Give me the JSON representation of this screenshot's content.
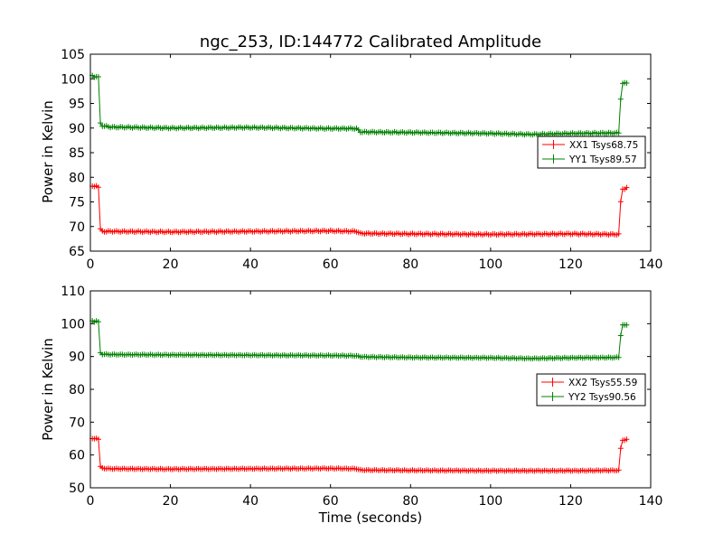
{
  "chart_data": [
    {
      "type": "line",
      "title": "ngc_253, ID:144772 Calibrated Amplitude",
      "xlabel": "",
      "ylabel": "Power in Kelvin",
      "xlim": [
        0,
        140
      ],
      "ylim": [
        65,
        105
      ],
      "xticks": [
        0,
        20,
        40,
        60,
        80,
        100,
        120,
        140
      ],
      "yticks": [
        65,
        70,
        75,
        80,
        85,
        90,
        95,
        100,
        105
      ],
      "legend_position": "right",
      "series": [
        {
          "name": "XX1 Tsys68.75",
          "color": "#ff0000",
          "levels": [
            [
              0.5,
              78.2
            ],
            [
              1.0,
              78.0
            ],
            [
              1.5,
              78.3
            ],
            [
              2.0,
              78.1
            ],
            [
              2.3,
              70.5
            ],
            [
              2.6,
              69.0
            ],
            [
              5,
              69.0
            ],
            [
              20,
              68.9
            ],
            [
              40,
              69.0
            ],
            [
              60,
              69.1
            ],
            [
              66.5,
              69.0
            ],
            [
              67.5,
              68.6
            ],
            [
              80,
              68.5
            ],
            [
              100,
              68.4
            ],
            [
              120,
              68.5
            ],
            [
              132,
              68.4
            ],
            [
              132.5,
              75.0
            ],
            [
              133,
              77.7
            ],
            [
              133.5,
              77.6
            ],
            [
              134,
              77.8
            ]
          ]
        },
        {
          "name": "YY1 Tsys89.57",
          "color": "#008000",
          "levels": [
            [
              0.5,
              100.6
            ],
            [
              1.0,
              100.4
            ],
            [
              1.5,
              100.5
            ],
            [
              2.0,
              100.3
            ],
            [
              2.3,
              92.0
            ],
            [
              2.6,
              90.5
            ],
            [
              5,
              90.2
            ],
            [
              20,
              90.0
            ],
            [
              40,
              90.1
            ],
            [
              60,
              89.9
            ],
            [
              66.5,
              89.9
            ],
            [
              67.5,
              89.2
            ],
            [
              80,
              89.1
            ],
            [
              100,
              88.9
            ],
            [
              110,
              88.7
            ],
            [
              120,
              88.9
            ],
            [
              132,
              89.0
            ],
            [
              132.5,
              96.0
            ],
            [
              133,
              99.0
            ],
            [
              133.5,
              99.1
            ],
            [
              134,
              99.2
            ]
          ]
        }
      ]
    },
    {
      "type": "line",
      "title": "",
      "xlabel": "Time (seconds)",
      "ylabel": "Power in Kelvin",
      "xlim": [
        0,
        140
      ],
      "ylim": [
        50,
        110
      ],
      "xticks": [
        0,
        20,
        40,
        60,
        80,
        100,
        120,
        140
      ],
      "yticks": [
        50,
        60,
        70,
        80,
        90,
        100,
        110
      ],
      "legend_position": "right",
      "series": [
        {
          "name": "XX2 Tsys55.59",
          "color": "#ff0000",
          "levels": [
            [
              0.5,
              65.0
            ],
            [
              1.0,
              64.8
            ],
            [
              1.5,
              65.1
            ],
            [
              2.0,
              64.9
            ],
            [
              2.3,
              57.5
            ],
            [
              2.6,
              56.0
            ],
            [
              5,
              55.8
            ],
            [
              20,
              55.7
            ],
            [
              40,
              55.8
            ],
            [
              60,
              55.9
            ],
            [
              66.5,
              55.8
            ],
            [
              67.5,
              55.4
            ],
            [
              80,
              55.3
            ],
            [
              100,
              55.2
            ],
            [
              120,
              55.2
            ],
            [
              132,
              55.3
            ],
            [
              132.5,
              62.0
            ],
            [
              133,
              64.6
            ],
            [
              133.5,
              64.5
            ],
            [
              134,
              64.7
            ]
          ]
        },
        {
          "name": "YY2 Tsys90.56",
          "color": "#008000",
          "levels": [
            [
              0.5,
              100.8
            ],
            [
              1.0,
              100.6
            ],
            [
              1.5,
              100.9
            ],
            [
              2.0,
              100.5
            ],
            [
              2.3,
              92.0
            ],
            [
              2.6,
              90.7
            ],
            [
              5,
              90.6
            ],
            [
              20,
              90.5
            ],
            [
              40,
              90.4
            ],
            [
              60,
              90.3
            ],
            [
              66.5,
              90.2
            ],
            [
              67.5,
              89.9
            ],
            [
              80,
              89.7
            ],
            [
              100,
              89.6
            ],
            [
              110,
              89.4
            ],
            [
              120,
              89.6
            ],
            [
              132,
              89.7
            ],
            [
              132.5,
              96.5
            ],
            [
              133,
              99.6
            ],
            [
              133.5,
              99.5
            ],
            [
              134,
              99.7
            ]
          ]
        }
      ]
    }
  ]
}
